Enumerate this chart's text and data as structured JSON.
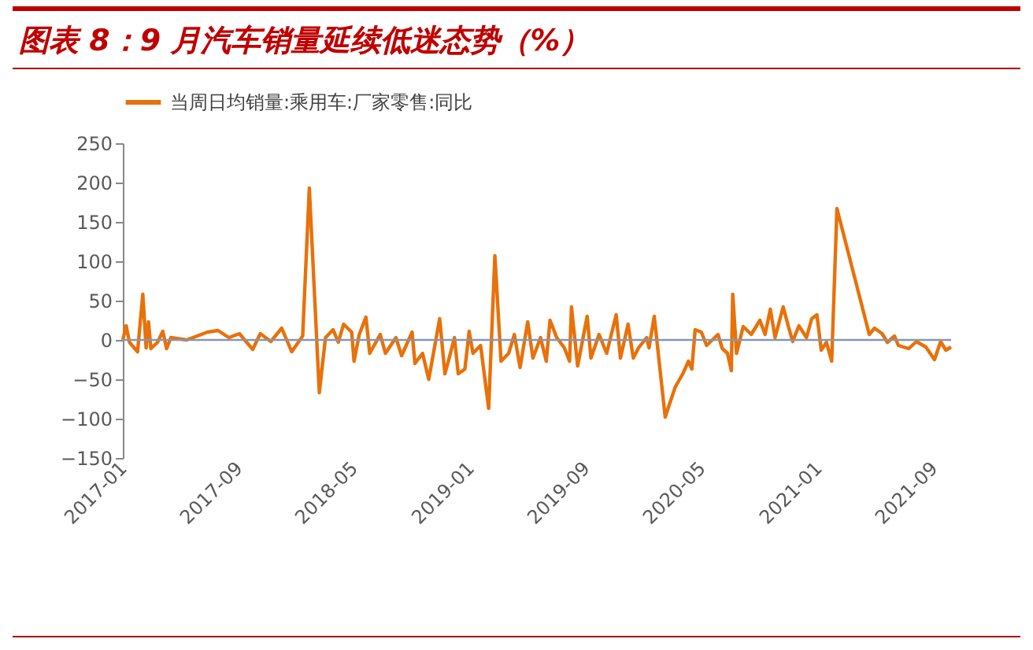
{
  "chart_data": {
    "type": "line",
    "title": "图表 8：9 月汽车销量延续低迷态势（%）",
    "x": [
      "2017-01-01",
      "2017-01-08",
      "2017-01-15",
      "2017-02-01",
      "2017-02-12",
      "2017-02-19",
      "2017-02-24",
      "2017-03-01",
      "2017-03-15",
      "2017-03-26",
      "2017-04-03",
      "2017-04-12",
      "2017-05-15",
      "2017-06-06",
      "2017-06-28",
      "2017-07-20",
      "2017-08-12",
      "2017-09-03",
      "2017-10-01",
      "2017-10-17",
      "2017-11-08",
      "2017-12-01",
      "2017-12-22",
      "2018-01-14",
      "2018-01-28",
      "2018-02-18",
      "2018-03-03",
      "2018-03-19",
      "2018-03-30",
      "2018-04-10",
      "2018-04-27",
      "2018-05-02",
      "2018-05-13",
      "2018-05-27",
      "2018-06-04",
      "2018-06-26",
      "2018-07-07",
      "2018-07-29",
      "2018-08-10",
      "2018-09-01",
      "2018-09-07",
      "2018-09-23",
      "2018-10-06",
      "2018-10-15",
      "2018-10-29",
      "2018-11-09",
      "2018-11-18",
      "2018-11-29",
      "2018-12-07",
      "2018-12-21",
      "2018-12-30",
      "2019-01-07",
      "2019-01-23",
      "2019-02-09",
      "2019-02-22",
      "2019-03-07",
      "2019-03-23",
      "2019-04-04",
      "2019-04-16",
      "2019-05-02",
      "2019-05-13",
      "2019-05-29",
      "2019-06-10",
      "2019-06-18",
      "2019-07-02",
      "2019-07-18",
      "2019-07-29",
      "2019-08-02",
      "2019-08-15",
      "2019-09-04",
      "2019-09-12",
      "2019-09-29",
      "2019-10-15",
      "2019-11-04",
      "2019-11-13",
      "2019-11-29",
      "2019-12-10",
      "2019-12-21",
      "2020-01-07",
      "2020-01-12",
      "2020-01-23",
      "2020-02-15",
      "2020-03-07",
      "2020-03-23",
      "2020-04-04",
      "2020-04-11",
      "2020-04-18",
      "2020-05-01",
      "2020-05-12",
      "2020-06-05",
      "2020-06-14",
      "2020-06-25",
      "2020-07-03",
      "2020-07-06",
      "2020-07-14",
      "2020-07-28",
      "2020-08-14",
      "2020-09-01",
      "2020-09-12",
      "2020-09-23",
      "2020-10-03",
      "2020-10-20",
      "2020-10-31",
      "2020-11-09",
      "2020-11-22",
      "2020-12-08",
      "2020-12-19",
      "2020-12-30",
      "2021-01-08",
      "2021-01-19",
      "2021-01-30",
      "2021-02-10",
      "2021-04-19",
      "2021-04-30",
      "2021-05-16",
      "2021-05-27",
      "2021-06-11",
      "2021-06-19",
      "2021-07-11",
      "2021-07-27",
      "2021-08-16",
      "2021-09-03",
      "2021-09-16",
      "2021-09-27",
      "2021-10-08"
    ],
    "series": [
      {
        "name": "当周日均销量:乘用车:厂家零售:同比",
        "color": "#e8710a",
        "values": [
          0,
          18,
          -3,
          -15,
          58,
          -10,
          23,
          -11,
          -3,
          11,
          -11,
          3,
          0,
          5,
          10,
          12,
          3,
          8,
          -12,
          8,
          -2,
          15,
          -15,
          5,
          193,
          -67,
          3,
          13,
          -3,
          20,
          10,
          -27,
          7,
          29,
          -17,
          7,
          -17,
          3,
          -20,
          10,
          -30,
          -17,
          -50,
          -20,
          27,
          -43,
          -23,
          3,
          -43,
          -37,
          11,
          -17,
          -7,
          -87,
          107,
          -27,
          -17,
          7,
          -35,
          23,
          -23,
          3,
          -27,
          25,
          3,
          -10,
          -27,
          42,
          -33,
          30,
          -23,
          7,
          -17,
          32,
          -23,
          20,
          -23,
          -10,
          3,
          -10,
          30,
          -98,
          -60,
          -43,
          -27,
          -37,
          13,
          10,
          -7,
          7,
          -11,
          -17,
          -39,
          58,
          -17,
          17,
          7,
          25,
          7,
          39,
          3,
          42,
          17,
          -2,
          18,
          3,
          27,
          32,
          -13,
          -3,
          -27,
          167,
          7,
          15,
          8,
          -3,
          5,
          -7,
          -11,
          -2,
          -9,
          -25,
          -2,
          -13,
          -9
        ]
      }
    ],
    "xlim": [
      "2017-01-01",
      "2021-10-08"
    ],
    "xticks": [
      "2017-01",
      "2017-09",
      "2018-05",
      "2019-01",
      "2019-09",
      "2020-05",
      "2021-01",
      "2021-09"
    ],
    "ylim": [
      -150,
      250
    ],
    "yticks": [
      -150,
      -100,
      -50,
      0,
      50,
      100,
      150,
      200,
      250
    ],
    "ref_lines": [
      {
        "axis": "y",
        "value": 0,
        "color": "#8497b0"
      }
    ],
    "legend": "top"
  }
}
